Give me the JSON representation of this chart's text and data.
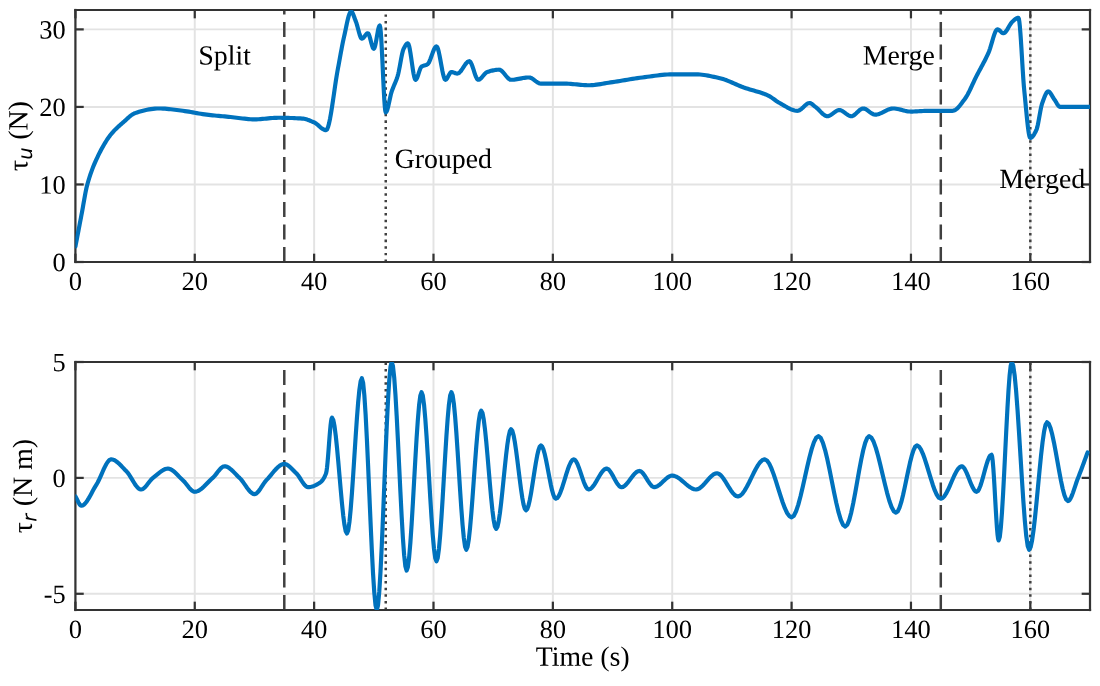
{
  "chart_data": [
    {
      "type": "line",
      "ylabel": "τ$_{u}$ (N)",
      "xlim": [
        0,
        170
      ],
      "ylim": [
        0,
        32.5
      ],
      "xticks": [
        0,
        20,
        40,
        60,
        80,
        100,
        120,
        140,
        160
      ],
      "yticks": [
        0,
        10,
        20,
        30
      ],
      "grid": true,
      "series": [
        {
          "color": "#0072bd",
          "x": [
            0,
            1,
            2,
            4,
            6,
            8,
            10,
            14,
            18,
            22,
            26,
            30,
            34,
            38,
            40,
            42,
            44,
            45,
            46.2,
            47,
            48,
            49,
            50,
            51,
            52,
            53,
            54,
            55,
            55.7,
            57,
            58,
            59,
            60.5,
            62,
            63,
            64,
            66,
            67.5,
            69,
            71,
            73,
            76,
            78,
            82,
            86,
            90,
            95,
            100,
            104,
            108,
            112,
            116,
            118,
            121,
            123,
            124,
            126,
            128,
            130,
            132,
            134,
            137,
            140,
            143,
            145,
            147,
            149,
            151,
            153,
            154.5,
            155.5,
            157,
            158,
            159,
            160,
            161,
            162,
            163,
            164,
            165,
            168,
            170
          ],
          "values": [
            2,
            6,
            10,
            14,
            16.5,
            18,
            19.2,
            19.8,
            19.5,
            19,
            18.7,
            18.4,
            18.6,
            18.5,
            18,
            17,
            25,
            29,
            32.3,
            31,
            28.8,
            29.5,
            27.5,
            30.5,
            19.3,
            22,
            24,
            27.5,
            28.2,
            23.5,
            25.2,
            25.5,
            27.8,
            23.5,
            24.5,
            24.3,
            25.9,
            23.5,
            24.5,
            24.8,
            23.5,
            23.8,
            23,
            23,
            22.8,
            23.2,
            23.8,
            24.2,
            24.2,
            23.7,
            22.5,
            21.5,
            20.5,
            19.5,
            20.5,
            20,
            18.8,
            19.6,
            18.8,
            19.8,
            19,
            19.8,
            19.4,
            19.5,
            19.5,
            19.5,
            21,
            24,
            27,
            30,
            29.5,
            31,
            31.5,
            22,
            16,
            17,
            20.5,
            22,
            21,
            20,
            20,
            20
          ]
        }
      ],
      "ref_lines": [
        {
          "axis": "x",
          "value": 35,
          "line_style": "dashed",
          "color": "#404040",
          "label": "Split"
        },
        {
          "axis": "x",
          "value": 52,
          "line_style": "dotted",
          "color": "#404040",
          "label": "Grouped"
        },
        {
          "axis": "x",
          "value": 145,
          "line_style": "dashed",
          "color": "#404040",
          "label": "Merge"
        },
        {
          "axis": "x",
          "value": 160,
          "line_style": "dotted",
          "color": "#404040",
          "label": "Merged"
        }
      ]
    },
    {
      "type": "line",
      "xlabel": "Time (s)",
      "ylabel": "τ$_{r}$ (N m)",
      "xlim": [
        0,
        170
      ],
      "ylim": [
        -5.7,
        5
      ],
      "xticks": [
        0,
        20,
        40,
        60,
        80,
        100,
        120,
        140,
        160
      ],
      "yticks": [
        {
          "value": -5,
          "label": "-5"
        },
        0,
        5
      ],
      "grid": true,
      "series": [
        {
          "color": "#0072bd",
          "x": [
            0,
            1,
            3.5,
            6,
            8.5,
            11,
            13,
            15.5,
            18,
            20,
            23,
            25,
            27.5,
            30,
            32,
            35,
            37,
            39,
            41,
            42,
            43,
            45.5,
            48,
            50.5,
            53,
            55.5,
            58,
            60.5,
            63,
            65.5,
            68,
            70.5,
            73,
            75.5,
            78,
            80.5,
            83.5,
            86,
            89,
            91.5,
            94.5,
            97,
            100,
            104,
            107.5,
            111,
            115.5,
            120,
            124.5,
            129,
            133,
            137.5,
            141,
            145,
            148.5,
            151,
            153.5,
            154.7,
            156.9,
            159.8,
            162.8,
            166.3,
            168,
            169.6
          ],
          "values": [
            -0.8,
            -1.2,
            -0.3,
            0.8,
            0.3,
            -0.5,
            0,
            0.4,
            -0.1,
            -0.6,
            0,
            0.5,
            0,
            -0.7,
            -0.1,
            0.6,
            0.2,
            -0.4,
            -0.2,
            0.2,
            2.6,
            -2.4,
            4.3,
            -5.7,
            5,
            -4,
            3.7,
            -3.6,
            3.7,
            -3.1,
            2.9,
            -2.2,
            2.1,
            -1.4,
            1.4,
            -0.9,
            0.8,
            -0.5,
            0.4,
            -0.4,
            0.3,
            -0.4,
            0.1,
            -0.5,
            0.2,
            -0.8,
            0.8,
            -1.7,
            1.8,
            -2.1,
            1.8,
            -1.5,
            1.4,
            -0.9,
            0.5,
            -0.6,
            1.0,
            -2.7,
            5.0,
            -3.1,
            2.4,
            -1,
            0,
            1.1
          ]
        }
      ],
      "ref_lines": [
        {
          "axis": "x",
          "value": 35,
          "line_style": "dashed",
          "color": "#404040"
        },
        {
          "axis": "x",
          "value": 52,
          "line_style": "dotted",
          "color": "#404040"
        },
        {
          "axis": "x",
          "value": 145,
          "line_style": "dashed",
          "color": "#404040"
        },
        {
          "axis": "x",
          "value": 160,
          "line_style": "dotted",
          "color": "#404040"
        }
      ]
    }
  ]
}
